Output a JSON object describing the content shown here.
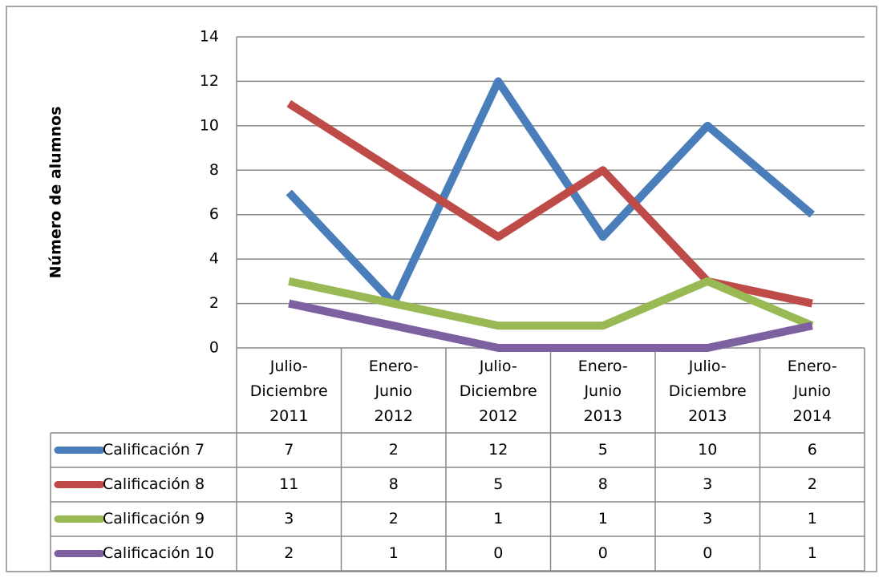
{
  "chart_data": {
    "type": "line",
    "y_label": "Número de alumnos",
    "categories": [
      "Julio-\nDiciembre\n2011",
      "Enero-\nJunio\n2012",
      "Julio-\nDiciembre\n2012",
      "Enero-\nJunio\n2013",
      "Julio-\nDiciembre\n2013",
      "Enero-\nJunio\n2014"
    ],
    "series": [
      {
        "name": "Calificación 7",
        "color": "#4a7ebb",
        "values": [
          7,
          2,
          12,
          5,
          10,
          6
        ]
      },
      {
        "name": "Calificación 8",
        "color": "#be4b48",
        "values": [
          11,
          8,
          5,
          8,
          3,
          2
        ]
      },
      {
        "name": "Calificación 9",
        "color": "#98b954",
        "values": [
          3,
          2,
          1,
          1,
          3,
          1
        ]
      },
      {
        "name": "Calificación 10",
        "color": "#7d60a0",
        "values": [
          2,
          1,
          0,
          0,
          0,
          1
        ]
      }
    ],
    "ylim": [
      0,
      14
    ],
    "yticks": [
      0,
      2,
      4,
      6,
      8,
      10,
      12,
      14
    ],
    "grid": true
  }
}
